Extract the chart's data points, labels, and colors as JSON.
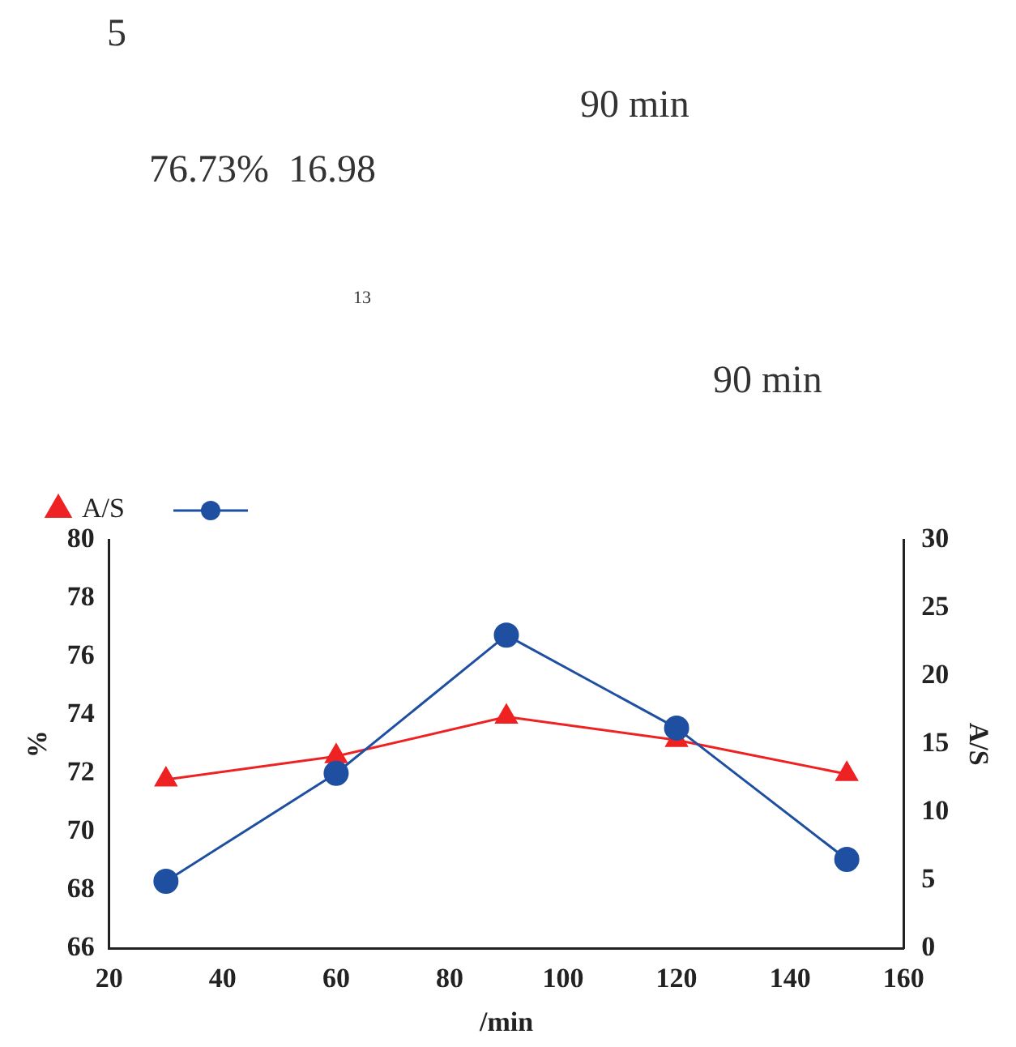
{
  "chart_data": {
    "type": "line",
    "annotations": [
      "5",
      "90 min",
      "76.73%  16.98",
      "13",
      "90 min"
    ],
    "xlabel": "/min",
    "ylabel": "%",
    "y2label": "A/S",
    "x": [
      30,
      60,
      90,
      120,
      150
    ],
    "series": [
      {
        "color": "#1f4fa0",
        "marker": "circle",
        "values": [
          68.3,
          72.0,
          76.73,
          73.55,
          69.05
        ]
      },
      {
        "name": "A/S",
        "color": "#ee2222",
        "marker": "triangle",
        "axis": "y2",
        "values": [
          12.4,
          14.1,
          17.0,
          15.3,
          12.8
        ]
      }
    ],
    "xlim": [
      20,
      160
    ],
    "xticks": [
      20,
      40,
      60,
      80,
      100,
      120,
      140,
      160
    ],
    "ylim": [
      66,
      80
    ],
    "yticks": [
      66,
      68,
      70,
      72,
      74,
      76,
      78,
      80
    ],
    "y2lim": [
      0,
      30
    ],
    "y2ticks": [
      0,
      5,
      10,
      15,
      20,
      25,
      30
    ],
    "grid": false,
    "legend": "top left"
  }
}
